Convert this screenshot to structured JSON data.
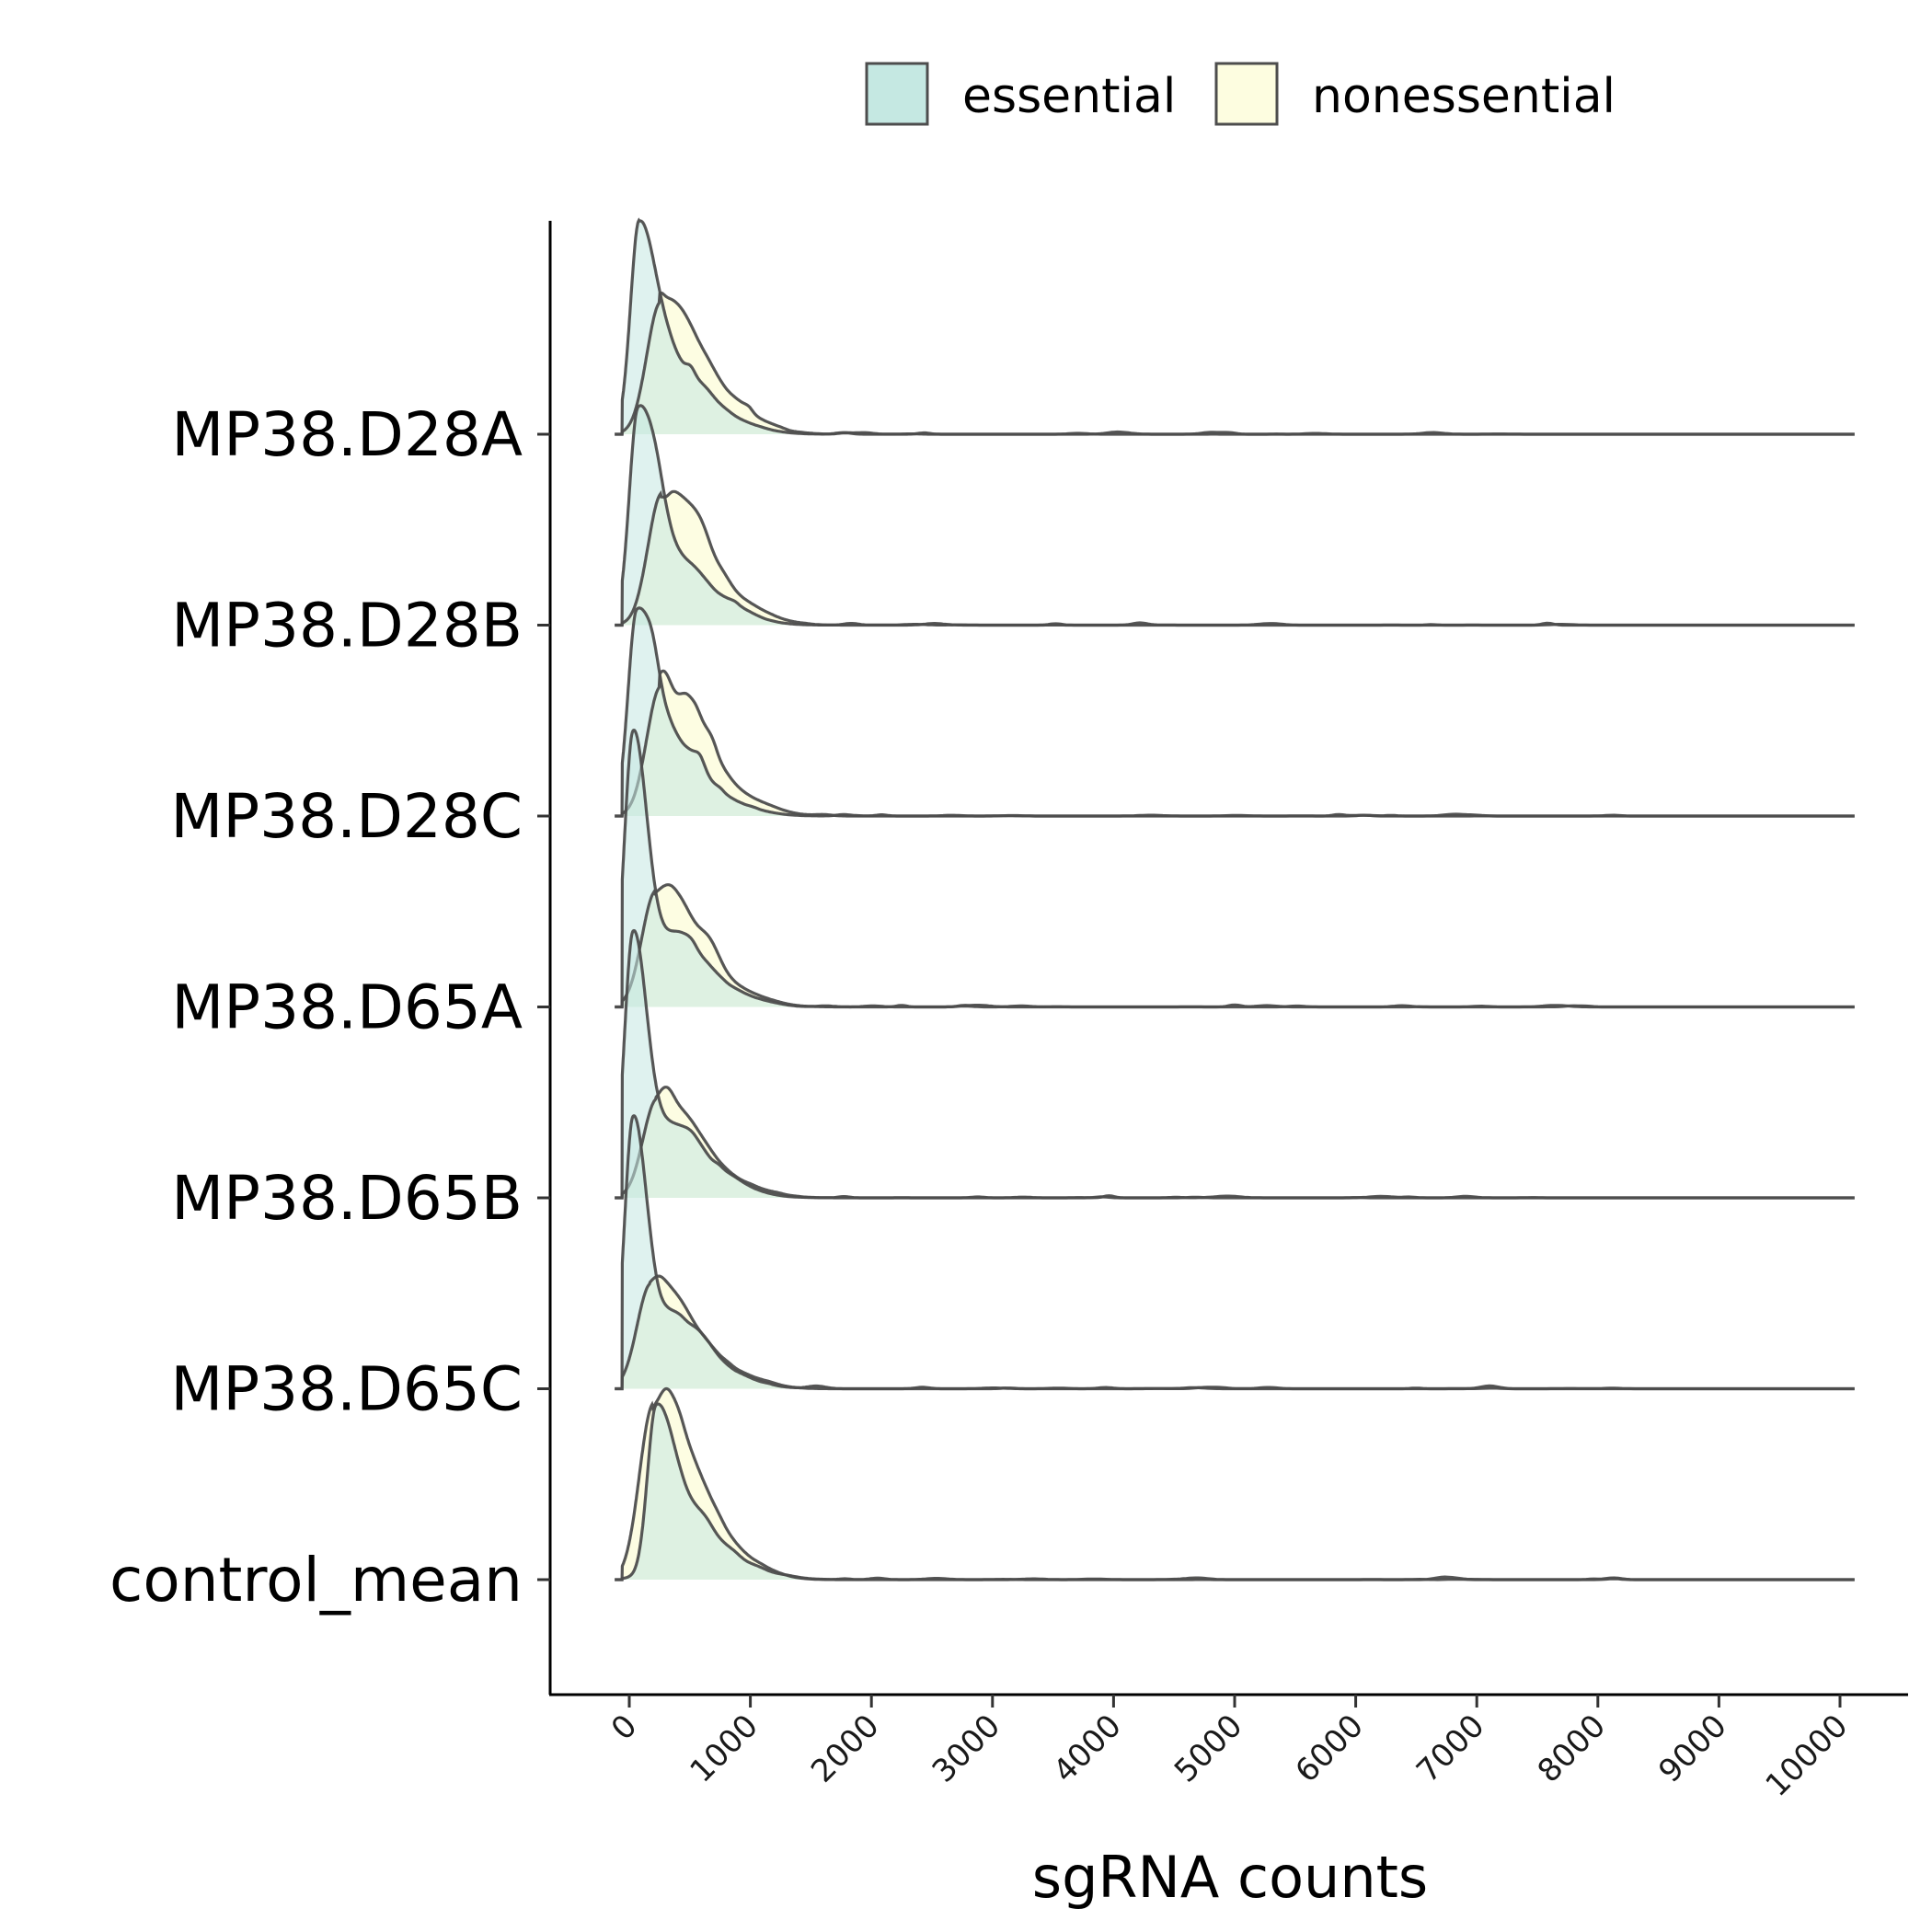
{
  "chart_data": {
    "type": "ridgeline density",
    "title": "",
    "xlabel": "sgRNA counts",
    "ylabel": "",
    "xlim": [
      0,
      10000
    ],
    "x_ticks": [
      0,
      1000,
      2000,
      3000,
      4000,
      5000,
      6000,
      7000,
      8000,
      9000,
      10000
    ],
    "x_tick_labels": [
      "0",
      "1000",
      "2000",
      "3000",
      "4000",
      "5000",
      "6000",
      "7000",
      "8000",
      "9000",
      "10000"
    ],
    "categories": [
      "MP38.D28A",
      "MP38.D28B",
      "MP38.D28C",
      "MP38.D65A",
      "MP38.D65B",
      "MP38.D65C",
      "control_mean"
    ],
    "grid": false,
    "legend": {
      "placement": "top",
      "entries": [
        {
          "name": "essential",
          "color": "#c5e8e2"
        },
        {
          "name": "nonessential",
          "color": "#fdfde0"
        }
      ]
    },
    "colors": {
      "essential": "#c5e8e2",
      "nonessential": "#fdfde0",
      "overlap": "#e2f2cc",
      "outline": "#4d4d4d"
    },
    "series": [
      {
        "name": "essential",
        "peaks": [
          {
            "category": "MP38.D28A",
            "mode": 80,
            "peak_height": 1.12
          },
          {
            "category": "MP38.D28B",
            "mode": 70,
            "peak_height": 1.15
          },
          {
            "category": "MP38.D28C",
            "mode": 60,
            "peak_height": 1.09
          },
          {
            "category": "MP38.D65A",
            "mode": 30,
            "peak_height": 1.45
          },
          {
            "category": "MP38.D65B",
            "mode": 30,
            "peak_height": 1.4
          },
          {
            "category": "MP38.D65C",
            "mode": 30,
            "peak_height": 1.43
          },
          {
            "category": "control_mean",
            "mode": 220,
            "peak_height": 0.92
          }
        ]
      },
      {
        "name": "nonessential",
        "peaks": [
          {
            "category": "MP38.D28A",
            "mode": 250,
            "peak_height": 0.74
          },
          {
            "category": "MP38.D28B",
            "mode": 260,
            "peak_height": 0.7
          },
          {
            "category": "MP38.D28C",
            "mode": 250,
            "peak_height": 0.76
          },
          {
            "category": "MP38.D65A",
            "mode": 210,
            "peak_height": 0.64
          },
          {
            "category": "MP38.D65B",
            "mode": 220,
            "peak_height": 0.58
          },
          {
            "category": "MP38.D65C",
            "mode": 170,
            "peak_height": 0.59
          },
          {
            "category": "control_mean",
            "mode": 190,
            "peak_height": 1.0
          }
        ]
      }
    ]
  }
}
